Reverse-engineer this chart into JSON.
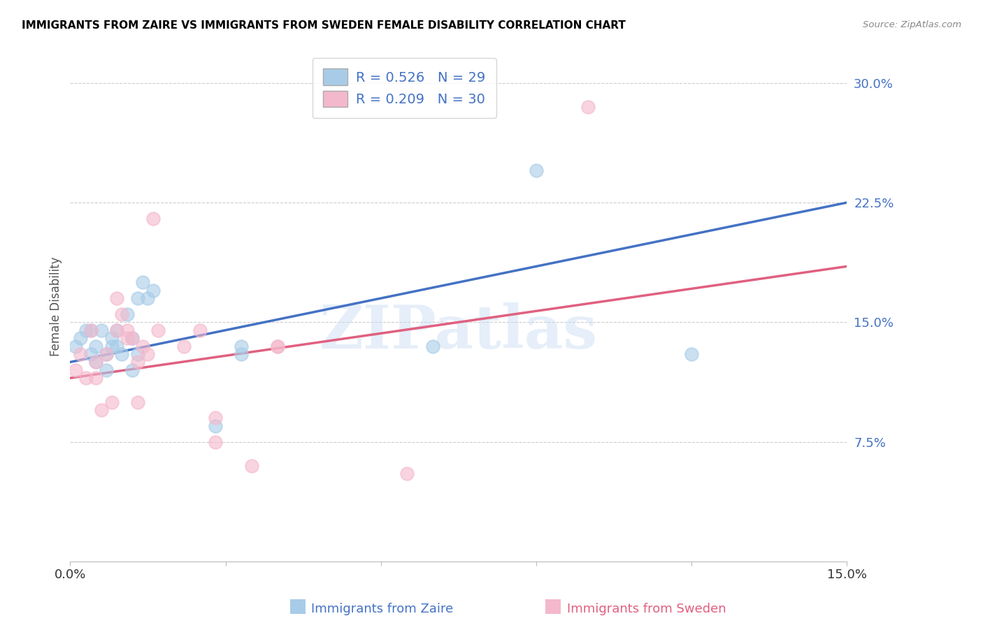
{
  "title": "IMMIGRANTS FROM ZAIRE VS IMMIGRANTS FROM SWEDEN FEMALE DISABILITY CORRELATION CHART",
  "source": "Source: ZipAtlas.com",
  "ylabel": "Female Disability",
  "yticks": [
    0.0,
    0.075,
    0.15,
    0.225,
    0.3
  ],
  "ytick_labels": [
    "",
    "7.5%",
    "15.0%",
    "22.5%",
    "30.0%"
  ],
  "xlim": [
    0.0,
    0.15
  ],
  "ylim": [
    0.0,
    0.32
  ],
  "zaire_R": 0.526,
  "zaire_N": 29,
  "sweden_R": 0.209,
  "sweden_N": 30,
  "zaire_color": "#a8cce8",
  "sweden_color": "#f4b8cc",
  "zaire_line_color": "#4472c4",
  "sweden_line_color": "#e06080",
  "text_color": "#4472c4",
  "watermark_color": "#ccdff5",
  "watermark_text": "ZIPatlas",
  "grid_color": "#cccccc",
  "zaire_x": [
    0.001,
    0.002,
    0.003,
    0.004,
    0.004,
    0.005,
    0.005,
    0.006,
    0.007,
    0.007,
    0.008,
    0.008,
    0.009,
    0.009,
    0.01,
    0.011,
    0.012,
    0.012,
    0.013,
    0.013,
    0.014,
    0.015,
    0.016,
    0.028,
    0.033,
    0.033,
    0.07,
    0.09,
    0.12
  ],
  "zaire_y": [
    0.135,
    0.14,
    0.145,
    0.13,
    0.145,
    0.135,
    0.125,
    0.145,
    0.12,
    0.13,
    0.14,
    0.135,
    0.145,
    0.135,
    0.13,
    0.155,
    0.14,
    0.12,
    0.13,
    0.165,
    0.175,
    0.165,
    0.17,
    0.085,
    0.135,
    0.13,
    0.135,
    0.245,
    0.13
  ],
  "sweden_x": [
    0.001,
    0.002,
    0.003,
    0.004,
    0.005,
    0.005,
    0.006,
    0.007,
    0.008,
    0.009,
    0.009,
    0.01,
    0.011,
    0.011,
    0.012,
    0.013,
    0.013,
    0.014,
    0.015,
    0.016,
    0.017,
    0.022,
    0.025,
    0.028,
    0.028,
    0.035,
    0.04,
    0.04,
    0.065,
    0.1
  ],
  "sweden_y": [
    0.12,
    0.13,
    0.115,
    0.145,
    0.125,
    0.115,
    0.095,
    0.13,
    0.1,
    0.165,
    0.145,
    0.155,
    0.14,
    0.145,
    0.14,
    0.125,
    0.1,
    0.135,
    0.13,
    0.215,
    0.145,
    0.135,
    0.145,
    0.075,
    0.09,
    0.06,
    0.135,
    0.135,
    0.055,
    0.285
  ]
}
